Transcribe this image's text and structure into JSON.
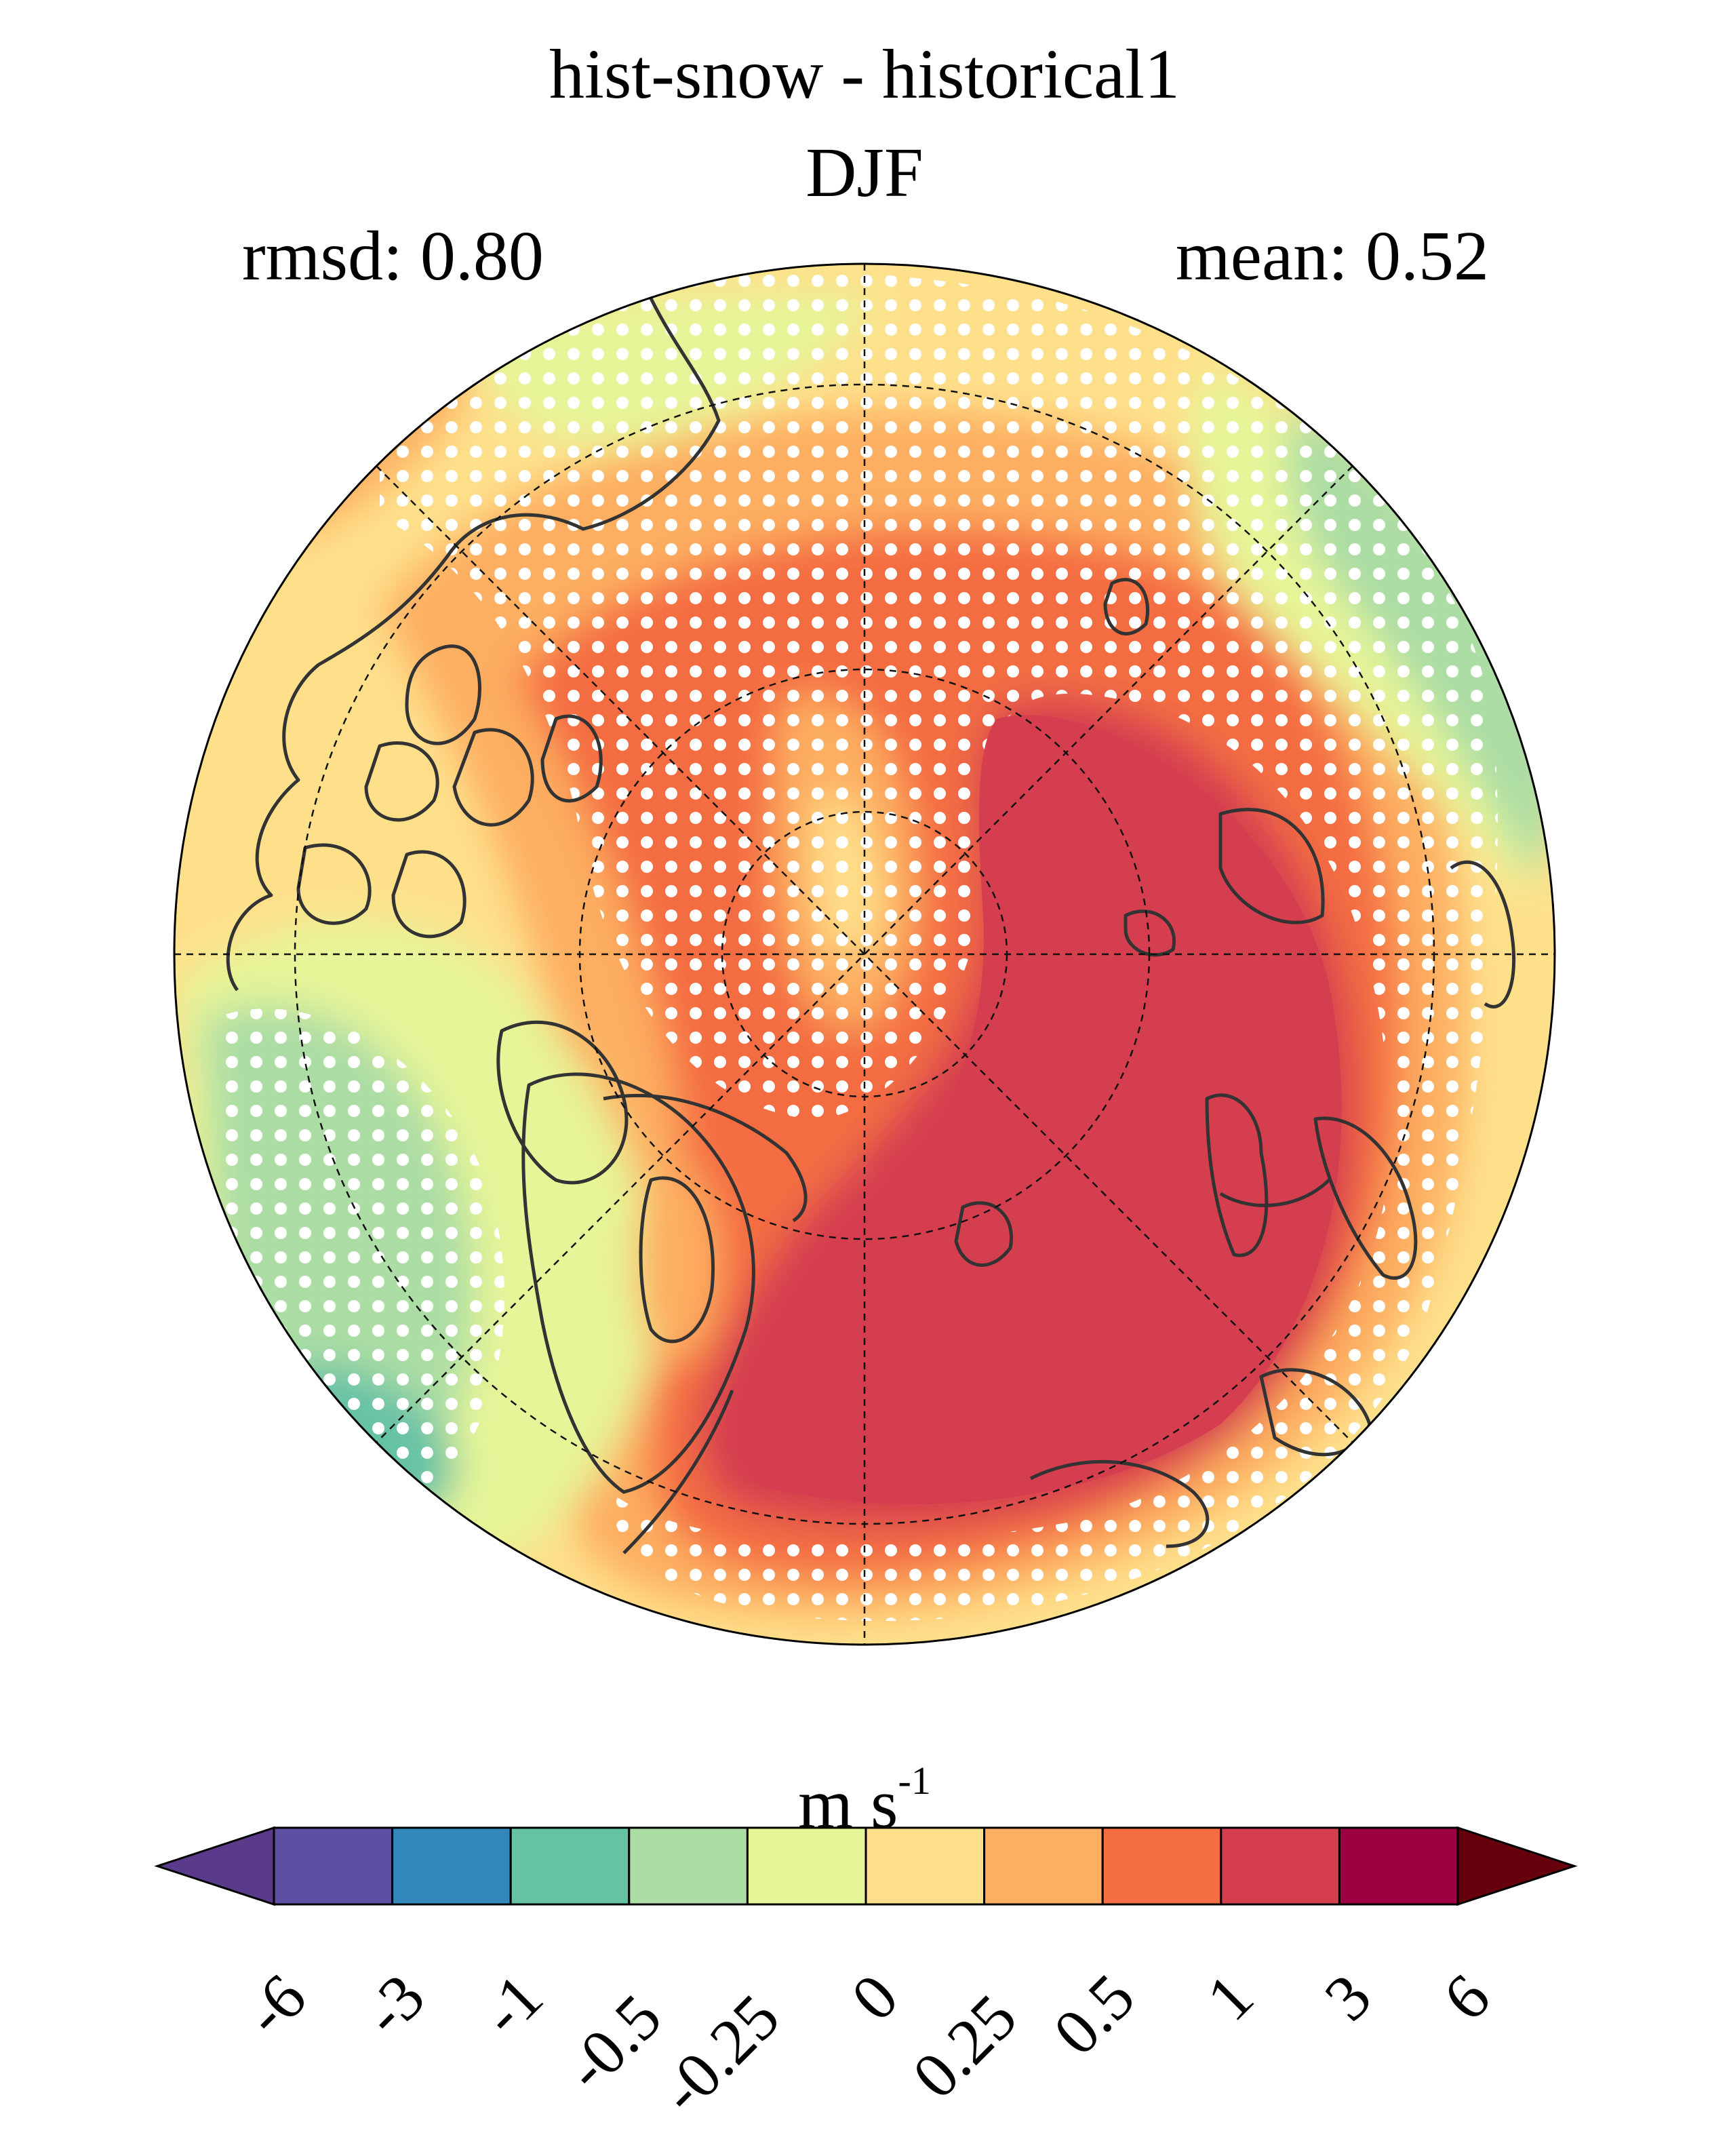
{
  "title": "hist-snow - historical1",
  "season": "DJF",
  "rmsd_text": "rmsd: 0.80",
  "mean_text": "mean: 0.52",
  "units": {
    "base": "m s",
    "exponent": "-1"
  },
  "colorbar": {
    "levels": [
      "-6",
      "-3",
      "-1",
      "-0.5",
      "-0.25",
      "0",
      "0.25",
      "0.5",
      "1",
      "3",
      "6"
    ],
    "colors": [
      "#5e4fa2",
      "#3288bd",
      "#66c2a5",
      "#abdda4",
      "#e6f598",
      "#fee08b",
      "#fdae61",
      "#f46d43",
      "#d53e4f",
      "#9e0142"
    ],
    "under_color": "#5a3a8a",
    "over_color": "#67000d"
  },
  "map_colors": {
    "ocean_base": "#fee08b",
    "light_positive": "#fdae61",
    "mid_positive": "#f46d43",
    "strong_positive": "#d53e4f",
    "weak_negative": "#e6f598",
    "negative": "#abdda4",
    "stronger_negative": "#66c2a5",
    "coastline": "#333333",
    "stipple": "#ffffff"
  }
}
